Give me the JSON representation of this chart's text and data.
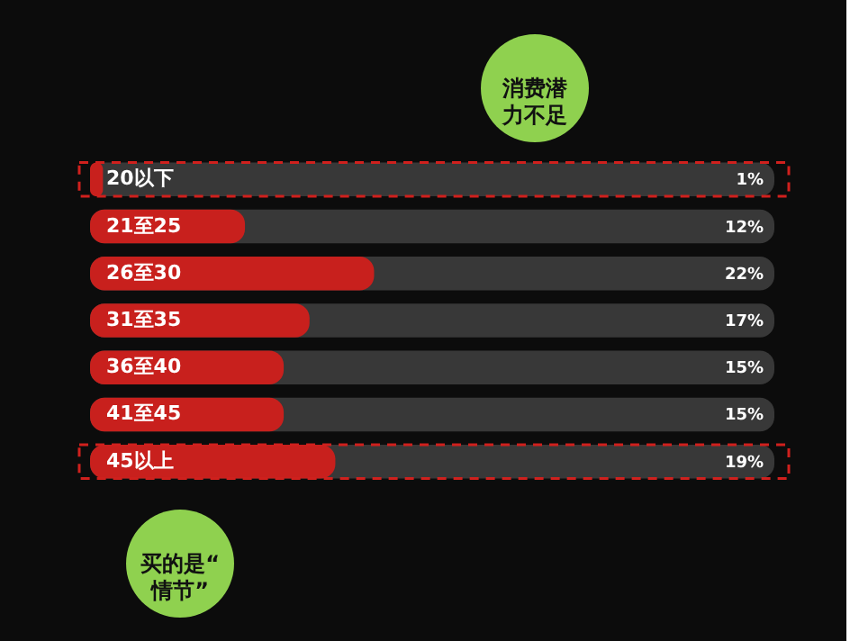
{
  "chart_data": {
    "type": "bar",
    "orientation": "horizontal",
    "categories": [
      "20以下",
      "21至25",
      "26至30",
      "31至35",
      "36至40",
      "41至45",
      "45以上"
    ],
    "values": [
      1,
      12,
      22,
      17,
      15,
      15,
      19
    ],
    "value_labels": [
      "1%",
      "12%",
      "22%",
      "17%",
      "15%",
      "15%",
      "19%"
    ],
    "color": "#c8201d",
    "xlim": [
      0,
      53
    ],
    "tick_labels": false,
    "grid": false,
    "annotations": [
      "消费潜力不足",
      "买的是“情节”"
    ]
  }
}
